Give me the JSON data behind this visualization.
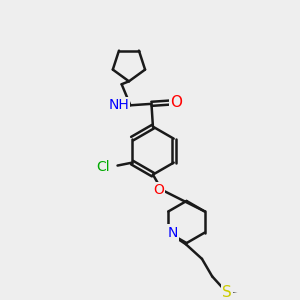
{
  "bg_color": "#eeeeee",
  "atom_colors": {
    "N": "#0000ff",
    "O": "#ff0000",
    "Cl": "#00aa00",
    "S": "#cccc00"
  },
  "bond_color": "#1a1a1a",
  "bond_width": 1.8,
  "font_size": 10
}
